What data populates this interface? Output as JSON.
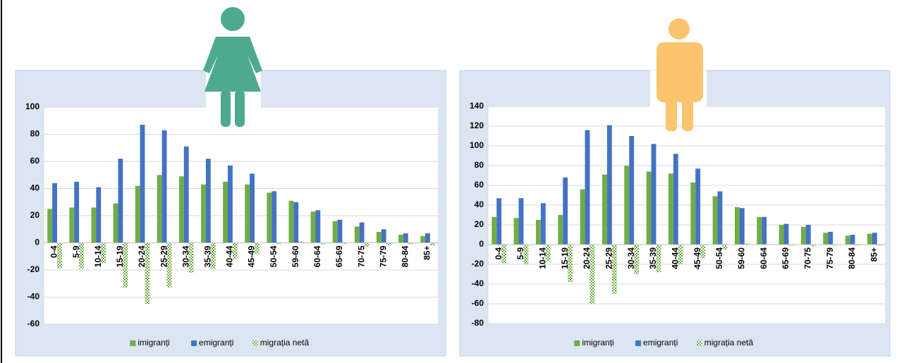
{
  "chart_data": [
    {
      "type": "bar",
      "categories": [
        "0-4",
        "5-9",
        "10-14",
        "15-19",
        "20-24",
        "25-29",
        "30-34",
        "35-39",
        "40-44",
        "45-49",
        "50-54",
        "59-60",
        "60-64",
        "65-69",
        "70-75",
        "75-79",
        "80-84",
        "85+"
      ],
      "series": [
        {
          "name": "imigranți",
          "color": "#70ad47",
          "values": [
            25,
            26,
            26,
            29,
            42,
            50,
            49,
            43,
            45,
            43,
            37,
            31,
            23,
            16,
            12,
            8,
            6,
            5
          ]
        },
        {
          "name": "emigranți",
          "color": "#4472c4",
          "values": [
            44,
            45,
            41,
            62,
            87,
            83,
            71,
            62,
            57,
            51,
            38,
            30,
            24,
            17,
            15,
            10,
            7,
            7
          ]
        },
        {
          "name": "migrația netă",
          "color": "#70ad47",
          "values": [
            -19,
            -19,
            -15,
            -33,
            -45,
            -33,
            -22,
            -19,
            -12,
            -8,
            -1,
            1,
            -1,
            -1,
            -3,
            -2,
            -1,
            -2
          ]
        }
      ],
      "ylim": [
        -60,
        100
      ],
      "yticks": [
        -60,
        -40,
        -20,
        0,
        20,
        40,
        60,
        80,
        100
      ],
      "grid": true,
      "legend": "bottom"
    },
    {
      "type": "bar",
      "categories": [
        "0-4",
        "5-9",
        "10-14",
        "15-19",
        "20-24",
        "25-29",
        "30-34",
        "35-39",
        "40-44",
        "45-49",
        "50-54",
        "59-60",
        "60-64",
        "65-69",
        "70-75",
        "75-79",
        "80-84",
        "85+"
      ],
      "series": [
        {
          "name": "imigranți",
          "color": "#70ad47",
          "values": [
            28,
            27,
            25,
            30,
            56,
            71,
            80,
            74,
            72,
            63,
            49,
            38,
            28,
            20,
            18,
            12,
            9,
            11
          ]
        },
        {
          "name": "emigranți",
          "color": "#4472c4",
          "values": [
            47,
            47,
            42,
            68,
            116,
            121,
            110,
            102,
            92,
            77,
            54,
            37,
            28,
            21,
            20,
            13,
            10,
            12
          ]
        },
        {
          "name": "migrația netă",
          "color": "#70ad47",
          "values": [
            -19,
            -20,
            -17,
            -38,
            -60,
            -50,
            -30,
            -28,
            -20,
            -14,
            -5,
            1,
            0,
            -1,
            -2,
            -1,
            -1,
            -1
          ]
        }
      ],
      "ylim": [
        -80,
        140
      ],
      "yticks": [
        -80,
        -60,
        -40,
        -20,
        0,
        20,
        40,
        60,
        80,
        100,
        120,
        140
      ],
      "grid": true,
      "legend": "bottom"
    }
  ]
}
